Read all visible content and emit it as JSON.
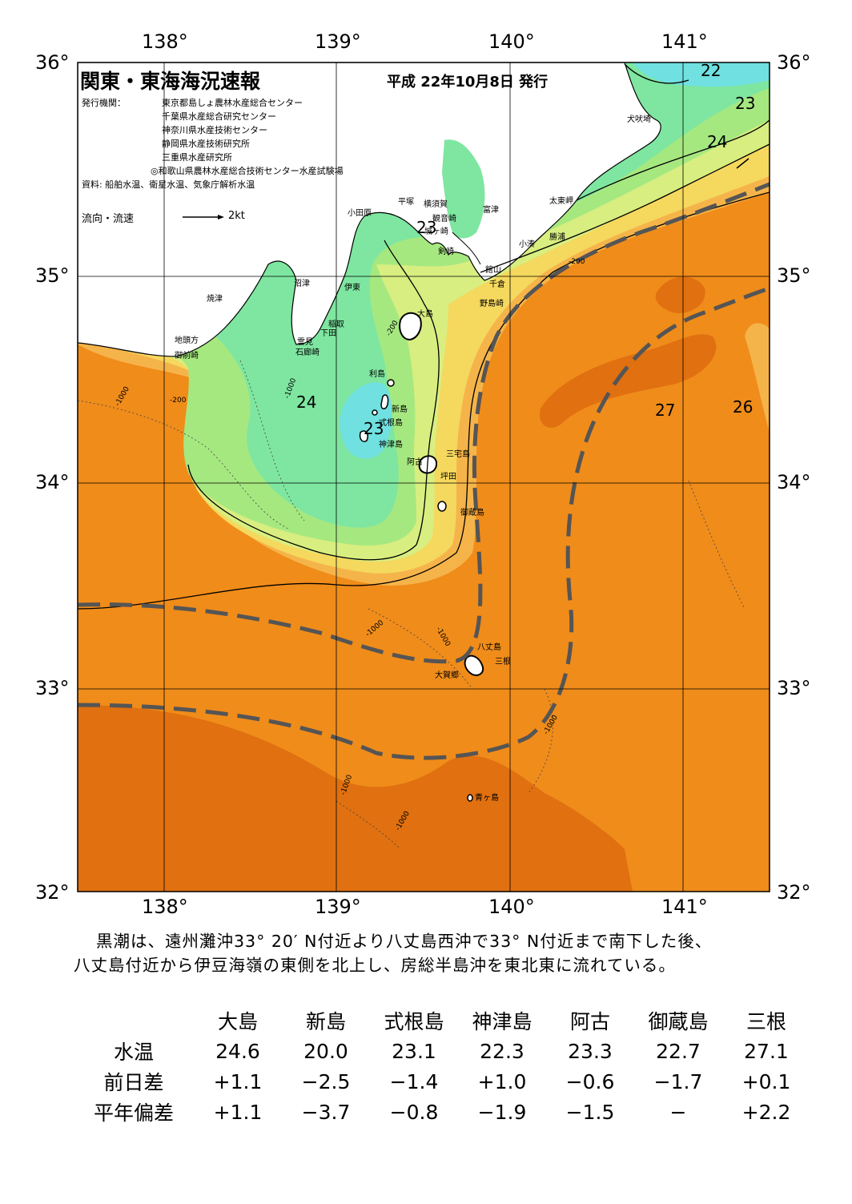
{
  "header": {
    "title": "関東・東海海況速報",
    "issue_date": "平成 22年10月8日 発行",
    "publisher_label": "発行機関：",
    "publishers": [
      "東京都島しょ農林水産総合センター",
      "千葉県水産総合研究センター",
      "神奈川県水産技術センター",
      "静岡県水産技術研究所",
      "三重県水産研究所",
      "◎和歌山県農林水産総合技術センター水産試験場"
    ],
    "sources": "資料: 船舶水温、衛星水温、気象庁解析水温",
    "current_legend": "流向・流速",
    "current_unit": "2kt"
  },
  "map": {
    "lon_labels": [
      "138°",
      "139°",
      "140°",
      "141°"
    ],
    "lat_labels": [
      "36°",
      "35°",
      "34°",
      "33°",
      "32°"
    ],
    "isotherm_labels": [
      "22",
      "23",
      "24",
      "24",
      "23",
      "23",
      "27",
      "26"
    ],
    "depth_labels": [
      "-1000",
      "-200"
    ],
    "places": {
      "inubozaki": "犬吠埼",
      "taitomisaki": "太東岬",
      "katsuura": "勝浦",
      "kominato": "小湊",
      "tateyama": "館山",
      "chikura": "千倉",
      "nojimazaki": "野島崎",
      "futtsu": "富津",
      "yokosuka": "横須賀",
      "hiratsuka": "平塚",
      "kannonzaki": "観音崎",
      "odawara": "小田原",
      "tsurugisaki": "剣崎",
      "jogasaki": "城ヶ崎",
      "ito": "伊東",
      "inatori": "稲取",
      "shimoda": "下田",
      "mera": "雲見",
      "irozaki": "石廊崎",
      "numazu": "沼津",
      "yaizu": "焼津",
      "jitogata": "地頭方",
      "omaezaki": "御前崎",
      "oshima": "大島",
      "toshima": "利島",
      "niijima": "新島",
      "shikinejima": "式根島",
      "kozushima": "神津島",
      "miyakejima": "三宅島",
      "ako": "阿古",
      "tsubota": "坪田",
      "mikurajima": "御蔵島",
      "hachijojima": "八丈島",
      "mitsune": "三根",
      "okago": "大賀郷",
      "aogashima": "青ヶ島"
    }
  },
  "description": [
    "黒潮は、遠州灘沖33° 20′ N付近より八丈島西沖で33° N付近まで南下した後、",
    "八丈島付近から伊豆海嶺の東側を北上し、房総半島沖を東北東に流れている。"
  ],
  "table": {
    "columns": [
      "大島",
      "新島",
      "式根島",
      "神津島",
      "阿古",
      "御蔵島",
      "三根"
    ],
    "rows": [
      {
        "label": "水温",
        "values": [
          "24.6",
          "20.0",
          "23.1",
          "22.3",
          "23.3",
          "22.7",
          "27.1"
        ]
      },
      {
        "label": "前日差",
        "values": [
          "+1.1",
          "−2.5",
          "−1.4",
          "+1.0",
          "−0.6",
          "−1.7",
          "+0.1"
        ]
      },
      {
        "label": "平年偏差",
        "values": [
          "+1.1",
          "−3.7",
          "−0.8",
          "−1.9",
          "−1.5",
          "−",
          "+2.2"
        ]
      }
    ]
  },
  "colors": {
    "temp_27": "#e07010",
    "temp_26": "#f08c1a",
    "temp_25": "#f5b44a",
    "temp_24_5": "#f5d85e",
    "temp_24": "#d8ee80",
    "temp_23_5": "#a6e880",
    "temp_23": "#7ee6a0",
    "temp_22": "#70e0e0",
    "land": "#ffffff",
    "kuroshio_axis": "#555555"
  }
}
